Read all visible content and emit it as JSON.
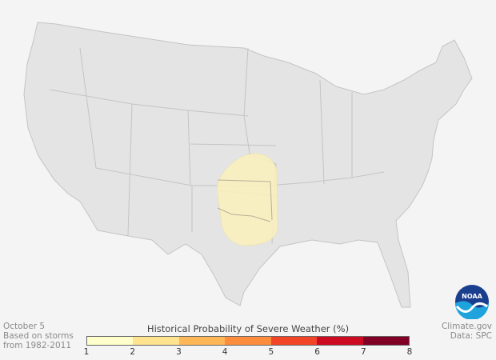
{
  "date": "October 5",
  "basis_line1": "Based on storms",
  "basis_line2": "from 1982-2011",
  "credit": "Climate.gov",
  "data_source": "Data: SPC",
  "legend": {
    "title": "Historical Probability of Severe Weather (%)",
    "ticks": [
      "1",
      "2",
      "3",
      "4",
      "5",
      "6",
      "7",
      "8"
    ],
    "colors": [
      "#ffffcc",
      "#ffe38e",
      "#feb756",
      "#fd8c3c",
      "#f24427",
      "#cc0b22",
      "#800026"
    ]
  },
  "map": {
    "land_color": "#e4e4e4",
    "border_color": "#c4c4c4",
    "highlight_color": "#f8eebe",
    "highlight_level": "1-2%",
    "highlight_region": "Kansas, Oklahoma, western Missouri/Arkansas, north Texas"
  },
  "logo": "NOAA"
}
